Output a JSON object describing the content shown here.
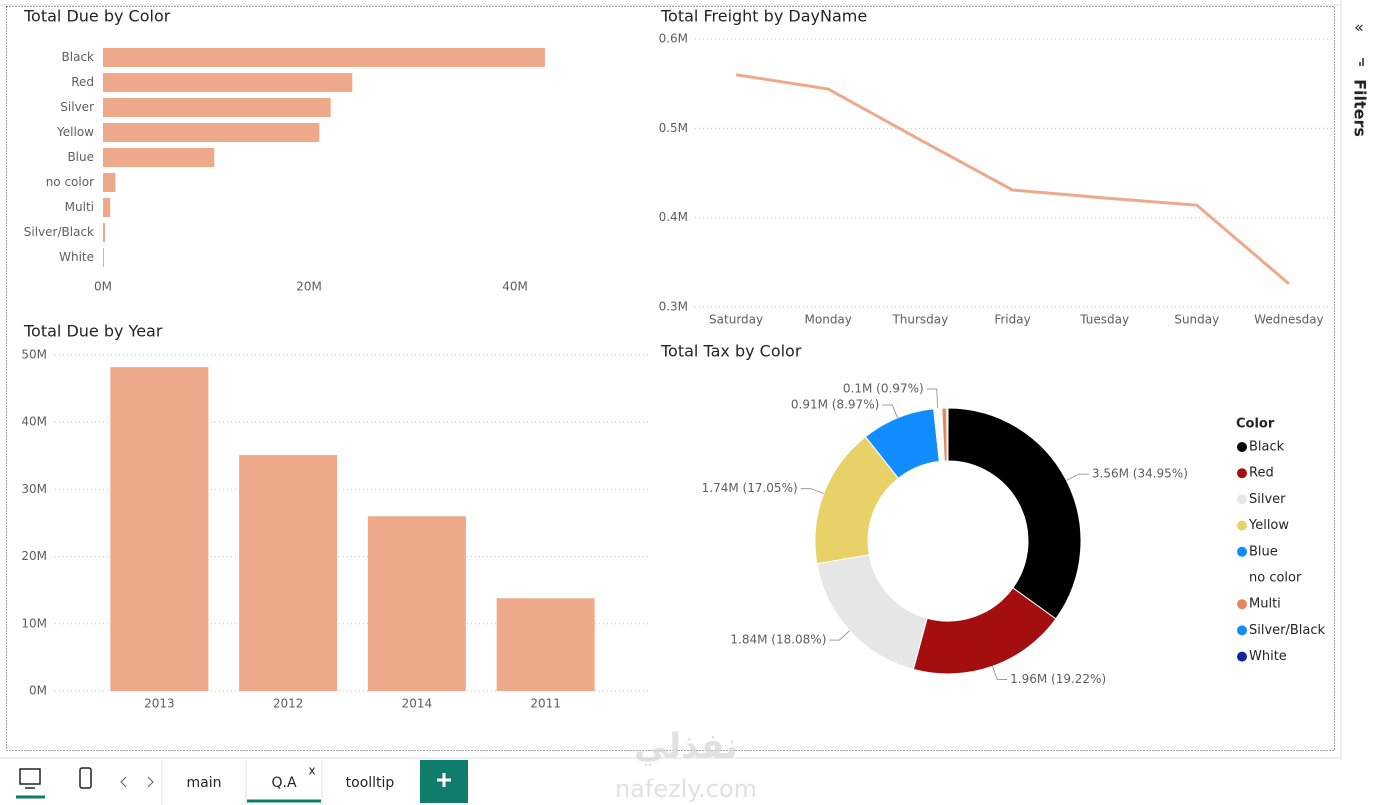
{
  "chart_data": [
    {
      "type": "hbar",
      "title": "Total Due by Color",
      "categories": [
        "Black",
        "Red",
        "Silver",
        "Yellow",
        "Blue",
        "no color",
        "Multi",
        "Silver/Black",
        "White"
      ],
      "values": [
        42.9,
        24.2,
        22.1,
        21.0,
        10.8,
        1.2,
        0.7,
        0.2,
        0.1
      ],
      "color": "#eea98b",
      "xlim": [
        0,
        50
      ],
      "xticks": [
        {
          "value": 0,
          "label": "0M"
        },
        {
          "value": 20,
          "label": "20M"
        },
        {
          "value": 40,
          "label": "40M"
        }
      ]
    },
    {
      "type": "line",
      "title": "Total Freight by DayName",
      "categories": [
        "Saturday",
        "Monday",
        "Thursday",
        "Friday",
        "Tuesday",
        "Sunday",
        "Wednesday"
      ],
      "values": [
        0.56,
        0.544,
        0.487,
        0.431,
        0.422,
        0.414,
        0.326
      ],
      "color": "#eea98b",
      "ylim": [
        0.3,
        0.6
      ],
      "yticks": [
        {
          "value": 0.3,
          "label": "0.3M"
        },
        {
          "value": 0.4,
          "label": "0.4M"
        },
        {
          "value": 0.5,
          "label": "0.5M"
        },
        {
          "value": 0.6,
          "label": "0.6M"
        }
      ],
      "grid": true
    },
    {
      "type": "bar",
      "title": "Total Due by Year",
      "categories": [
        "2013",
        "2012",
        "2014",
        "2011"
      ],
      "values": [
        48.2,
        35.1,
        26.0,
        13.8
      ],
      "color": "#eea98b",
      "ylim": [
        0,
        50
      ],
      "yticks": [
        {
          "value": 0,
          "label": "0M"
        },
        {
          "value": 10,
          "label": "10M"
        },
        {
          "value": 20,
          "label": "20M"
        },
        {
          "value": 30,
          "label": "30M"
        },
        {
          "value": 40,
          "label": "40M"
        },
        {
          "value": 50,
          "label": "50M"
        }
      ],
      "grid": true
    },
    {
      "type": "donut",
      "title": "Total Tax by Color",
      "legend_title": "Color",
      "legend": "right",
      "series": [
        {
          "name": "Black",
          "color": "#000000",
          "value": 3.56,
          "value_label": "3.56M (34.95%)"
        },
        {
          "name": "Red",
          "color": "#a50e0e",
          "value": 1.96,
          "value_label": "1.96M (19.22%)"
        },
        {
          "name": "Silver",
          "color": "#e6e6e6",
          "value": 1.84,
          "value_label": "1.84M (18.08%)"
        },
        {
          "name": "Yellow",
          "color": "#e8d166",
          "value": 1.74,
          "value_label": "1.74M (17.05%)"
        },
        {
          "name": "Blue",
          "color": "#118dff",
          "value": 0.91,
          "value_label": "0.91M (8.97%)"
        },
        {
          "name": "no color",
          "color": "#ffffff",
          "value": 0.1,
          "value_label": "0.1M (0.97%)"
        },
        {
          "name": "Multi",
          "color": "#e8875f",
          "value": 0.06,
          "value_label": null
        },
        {
          "name": "Silver/Black",
          "color": "#118dff",
          "value": 0.01,
          "value_label": null
        },
        {
          "name": "White",
          "color": "#12239e",
          "value": 0.005,
          "value_label": null
        }
      ]
    }
  ],
  "ui": {
    "collapse": "«",
    "filters": "Filters",
    "tabs": [
      "main",
      "Q.A",
      "toolltip"
    ],
    "close": "x",
    "watermark": [
      "نفذلي",
      "nafezly.com"
    ]
  }
}
